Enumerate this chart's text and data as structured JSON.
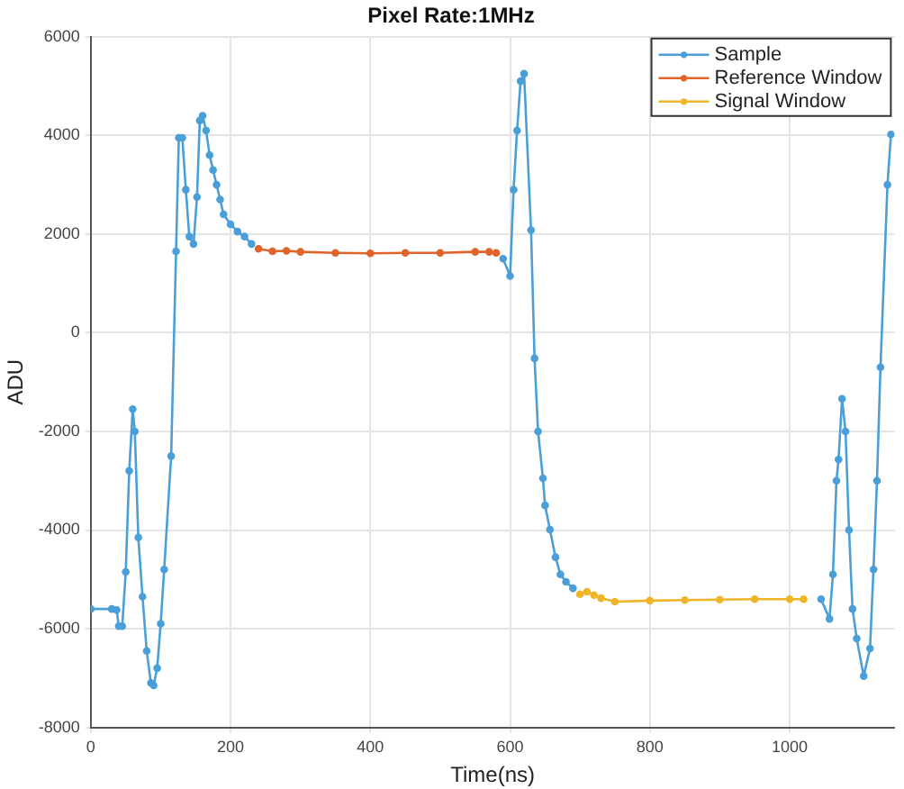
{
  "chart_data": {
    "type": "line",
    "title": "Pixel Rate:1MHz",
    "xlabel": "Time(ns)",
    "ylabel": "ADU",
    "xlim": [
      0,
      1150
    ],
    "xticks": [
      0,
      200,
      400,
      600,
      800,
      1000
    ],
    "ylim": [
      -8000,
      6000
    ],
    "yticks": [
      -8000,
      -6000,
      -4000,
      -2000,
      0,
      2000,
      4000,
      6000
    ],
    "grid": true,
    "legend": "top right",
    "marker": "circle",
    "line_style": "solid",
    "series": [
      {
        "name": "Sample",
        "color": "#4a9fd8",
        "x": [
          0,
          30,
          37,
          40,
          45,
          50,
          55,
          60,
          63,
          68,
          74,
          80,
          86,
          90,
          95,
          100,
          105,
          115,
          122,
          126,
          131,
          136,
          141,
          147,
          152,
          156,
          160,
          165,
          170,
          175,
          180,
          185,
          190,
          200,
          210,
          220,
          230,
          240,
          260,
          300,
          350,
          400,
          450,
          500,
          550,
          570,
          580,
          590,
          600,
          605,
          610,
          615,
          620,
          630,
          635,
          640,
          647,
          650,
          657,
          665,
          672,
          680,
          690,
          700,
          750,
          800,
          850,
          900,
          950,
          1000,
          1020,
          1045,
          1057,
          1062,
          1067,
          1070,
          1075,
          1080,
          1085,
          1090,
          1096,
          1106,
          1115,
          1120,
          1125,
          1130,
          1140,
          1145
        ],
        "values": [
          -5600,
          -5600,
          -5620,
          -5950,
          -5950,
          -4850,
          -2800,
          -1550,
          -2000,
          -4150,
          -5350,
          -6450,
          -7100,
          -7150,
          -6800,
          -5900,
          -4800,
          -2500,
          1650,
          3950,
          3950,
          2900,
          1950,
          1800,
          2750,
          4300,
          4400,
          4100,
          3600,
          3300,
          3000,
          2700,
          2400,
          2200,
          2050,
          1950,
          1800,
          null,
          null,
          null,
          null,
          null,
          null,
          null,
          null,
          null,
          null,
          1500,
          1150,
          2900,
          4100,
          5100,
          5250,
          2080,
          -520,
          -2000,
          -2950,
          -3500,
          -3990,
          -4550,
          -4900,
          -5050,
          -5180,
          null,
          null,
          null,
          null,
          null,
          null,
          null,
          null,
          -5400,
          -5800,
          -4900,
          -3000,
          -2570,
          -1340,
          -2000,
          -4000,
          -5600,
          -6200,
          -6960,
          -6400,
          -4800,
          -3000,
          -700,
          3000,
          4020
        ]
      },
      {
        "name": "Reference Window",
        "color": "#e0642a",
        "x": [
          240,
          260,
          280,
          300,
          350,
          400,
          450,
          500,
          550,
          570,
          580
        ],
        "values": [
          1700,
          1650,
          1660,
          1640,
          1620,
          1610,
          1620,
          1620,
          1640,
          1640,
          1620
        ]
      },
      {
        "name": "Signal Window",
        "color": "#f0b428",
        "x": [
          700,
          710,
          720,
          730,
          750,
          800,
          850,
          900,
          950,
          1000,
          1020
        ],
        "values": [
          -5300,
          -5250,
          -5320,
          -5380,
          -5450,
          -5430,
          -5420,
          -5410,
          -5400,
          -5400,
          -5400
        ]
      }
    ]
  }
}
